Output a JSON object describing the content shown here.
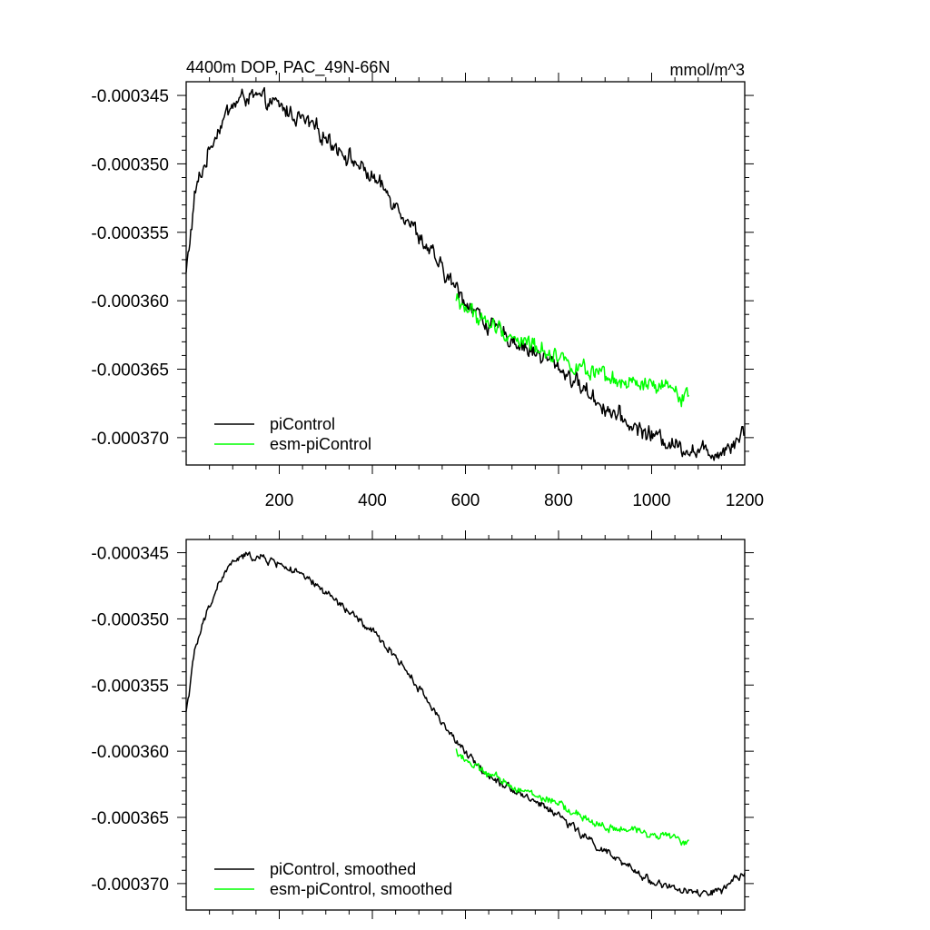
{
  "chart_data": [
    {
      "type": "line",
      "title": "4400m DOP, PAC_49N-66N",
      "units": "mmol/m^3",
      "xlim": [
        0,
        1200
      ],
      "ylim": [
        -0.000372,
        -0.000344
      ],
      "xticks": [
        200,
        400,
        600,
        800,
        1000,
        1200
      ],
      "xtick_labels": [
        "200",
        "400",
        "600",
        "800",
        "1000",
        "1200"
      ],
      "yticks": [
        -0.000345,
        -0.00035,
        -0.000355,
        -0.00036,
        -0.000365,
        -0.00037
      ],
      "ytick_labels": [
        "-0.000345",
        "-0.000350",
        "-0.000355",
        "-0.000360",
        "-0.000365",
        "-0.000370"
      ],
      "legend_position": "bottom-left",
      "series": [
        {
          "name": "piControl",
          "color": "#000000",
          "noise": 4.5e-07,
          "x": [
            0,
            10,
            20,
            40,
            60,
            80,
            100,
            130,
            160,
            200,
            250,
            300,
            350,
            400,
            450,
            500,
            550,
            600,
            650,
            700,
            750,
            800,
            850,
            900,
            950,
            1000,
            1050,
            1100,
            1150,
            1200
          ],
          "y": [
            -0.000358,
            -0.000355,
            -0.000352,
            -0.00035,
            -0.000348,
            -0.0003467,
            -0.0003457,
            -0.000345,
            -0.0003453,
            -0.0003458,
            -0.0003468,
            -0.000348,
            -0.0003495,
            -0.000351,
            -0.0003528,
            -0.0003552,
            -0.0003578,
            -0.00036,
            -0.0003618,
            -0.0003628,
            -0.0003638,
            -0.0003648,
            -0.0003663,
            -0.0003678,
            -0.000369,
            -0.0003698,
            -0.0003705,
            -0.000371,
            -0.000371,
            -0.0003695
          ]
        },
        {
          "name": "esm-piControl",
          "color": "#00ff00",
          "noise": 4.5e-07,
          "x": [
            580,
            620,
            680,
            740,
            800,
            860,
            920,
            980,
            1040,
            1080
          ],
          "y": [
            -0.00036,
            -0.000361,
            -0.0003623,
            -0.0003632,
            -0.000364,
            -0.0003652,
            -0.000366,
            -0.0003662,
            -0.0003665,
            -0.000367
          ]
        }
      ]
    },
    {
      "type": "line",
      "title": "",
      "units": "",
      "xlim": [
        0,
        1200
      ],
      "ylim": [
        -0.000372,
        -0.000344
      ],
      "xticks": [
        200,
        400,
        600,
        800,
        1000,
        1200
      ],
      "xtick_labels": [],
      "yticks": [
        -0.000345,
        -0.00035,
        -0.000355,
        -0.00036,
        -0.000365,
        -0.00037
      ],
      "ytick_labels": [
        "-0.000345",
        "-0.000350",
        "-0.000355",
        "-0.000360",
        "-0.000365",
        "-0.000370"
      ],
      "legend_position": "bottom-left",
      "series": [
        {
          "name": "piControl, smoothed",
          "color": "#000000",
          "noise": 2.2e-07,
          "x": [
            0,
            10,
            20,
            40,
            60,
            80,
            100,
            130,
            160,
            200,
            250,
            300,
            350,
            400,
            450,
            500,
            550,
            600,
            650,
            700,
            750,
            800,
            850,
            900,
            950,
            1000,
            1050,
            1100,
            1150,
            1200
          ],
          "y": [
            -0.000357,
            -0.0003545,
            -0.0003522,
            -0.00035,
            -0.0003481,
            -0.0003467,
            -0.0003457,
            -0.0003452,
            -0.0003454,
            -0.0003458,
            -0.0003468,
            -0.000348,
            -0.0003495,
            -0.000351,
            -0.0003528,
            -0.0003552,
            -0.0003578,
            -0.0003602,
            -0.0003618,
            -0.0003628,
            -0.0003638,
            -0.0003648,
            -0.0003663,
            -0.0003676,
            -0.0003688,
            -0.0003698,
            -0.0003704,
            -0.0003708,
            -0.0003706,
            -0.0003692
          ]
        },
        {
          "name": "esm-piControl, smoothed",
          "color": "#00ff00",
          "noise": 2.2e-07,
          "x": [
            580,
            620,
            680,
            740,
            800,
            860,
            920,
            980,
            1040,
            1080
          ],
          "y": [
            -0.00036,
            -0.0003612,
            -0.0003623,
            -0.0003632,
            -0.000364,
            -0.0003652,
            -0.0003659,
            -0.0003661,
            -0.0003664,
            -0.000367
          ]
        }
      ]
    }
  ]
}
